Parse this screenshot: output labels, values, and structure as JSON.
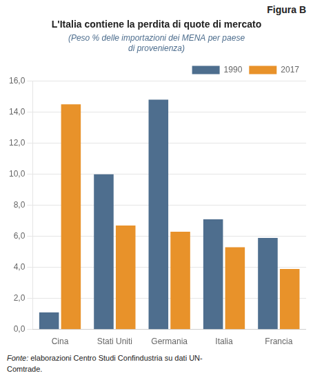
{
  "chart_data": {
    "type": "bar",
    "title": "L'Italia contiene la perdita di quote di mercato",
    "subtitle": "(Peso % delle importazioni dei MENA per paese\ndi provenienza)",
    "annotations": [
      "Figura B",
      "Fonte: elaborazioni Centro Studi Confindustria su dati UN-\nComtrade."
    ],
    "categories": [
      "Cina",
      "Stati Uniti",
      "Germania",
      "Italia",
      "Francia"
    ],
    "series": [
      {
        "name": "1990",
        "color": "#4e6e8e",
        "values": [
          1.1,
          10.0,
          14.8,
          7.1,
          5.9
        ]
      },
      {
        "name": "2017",
        "color": "#e8922a",
        "values": [
          14.5,
          6.7,
          6.3,
          5.3,
          3.9
        ]
      }
    ],
    "ylim": [
      0,
      16.0
    ],
    "yticks": [
      {
        "value": 0.0,
        "label": "0,0"
      },
      {
        "value": 2.0,
        "label": "2,0"
      },
      {
        "value": 4.0,
        "label": "4,0"
      },
      {
        "value": 6.0,
        "label": "6,0"
      },
      {
        "value": 8.0,
        "label": "8,0"
      },
      {
        "value": 10.0,
        "label": "10,0"
      },
      {
        "value": 12.0,
        "label": "12,0"
      },
      {
        "value": 14.0,
        "label": "14,0"
      },
      {
        "value": 16.0,
        "label": "16,0"
      }
    ],
    "grid": true,
    "legend": "upper right"
  }
}
